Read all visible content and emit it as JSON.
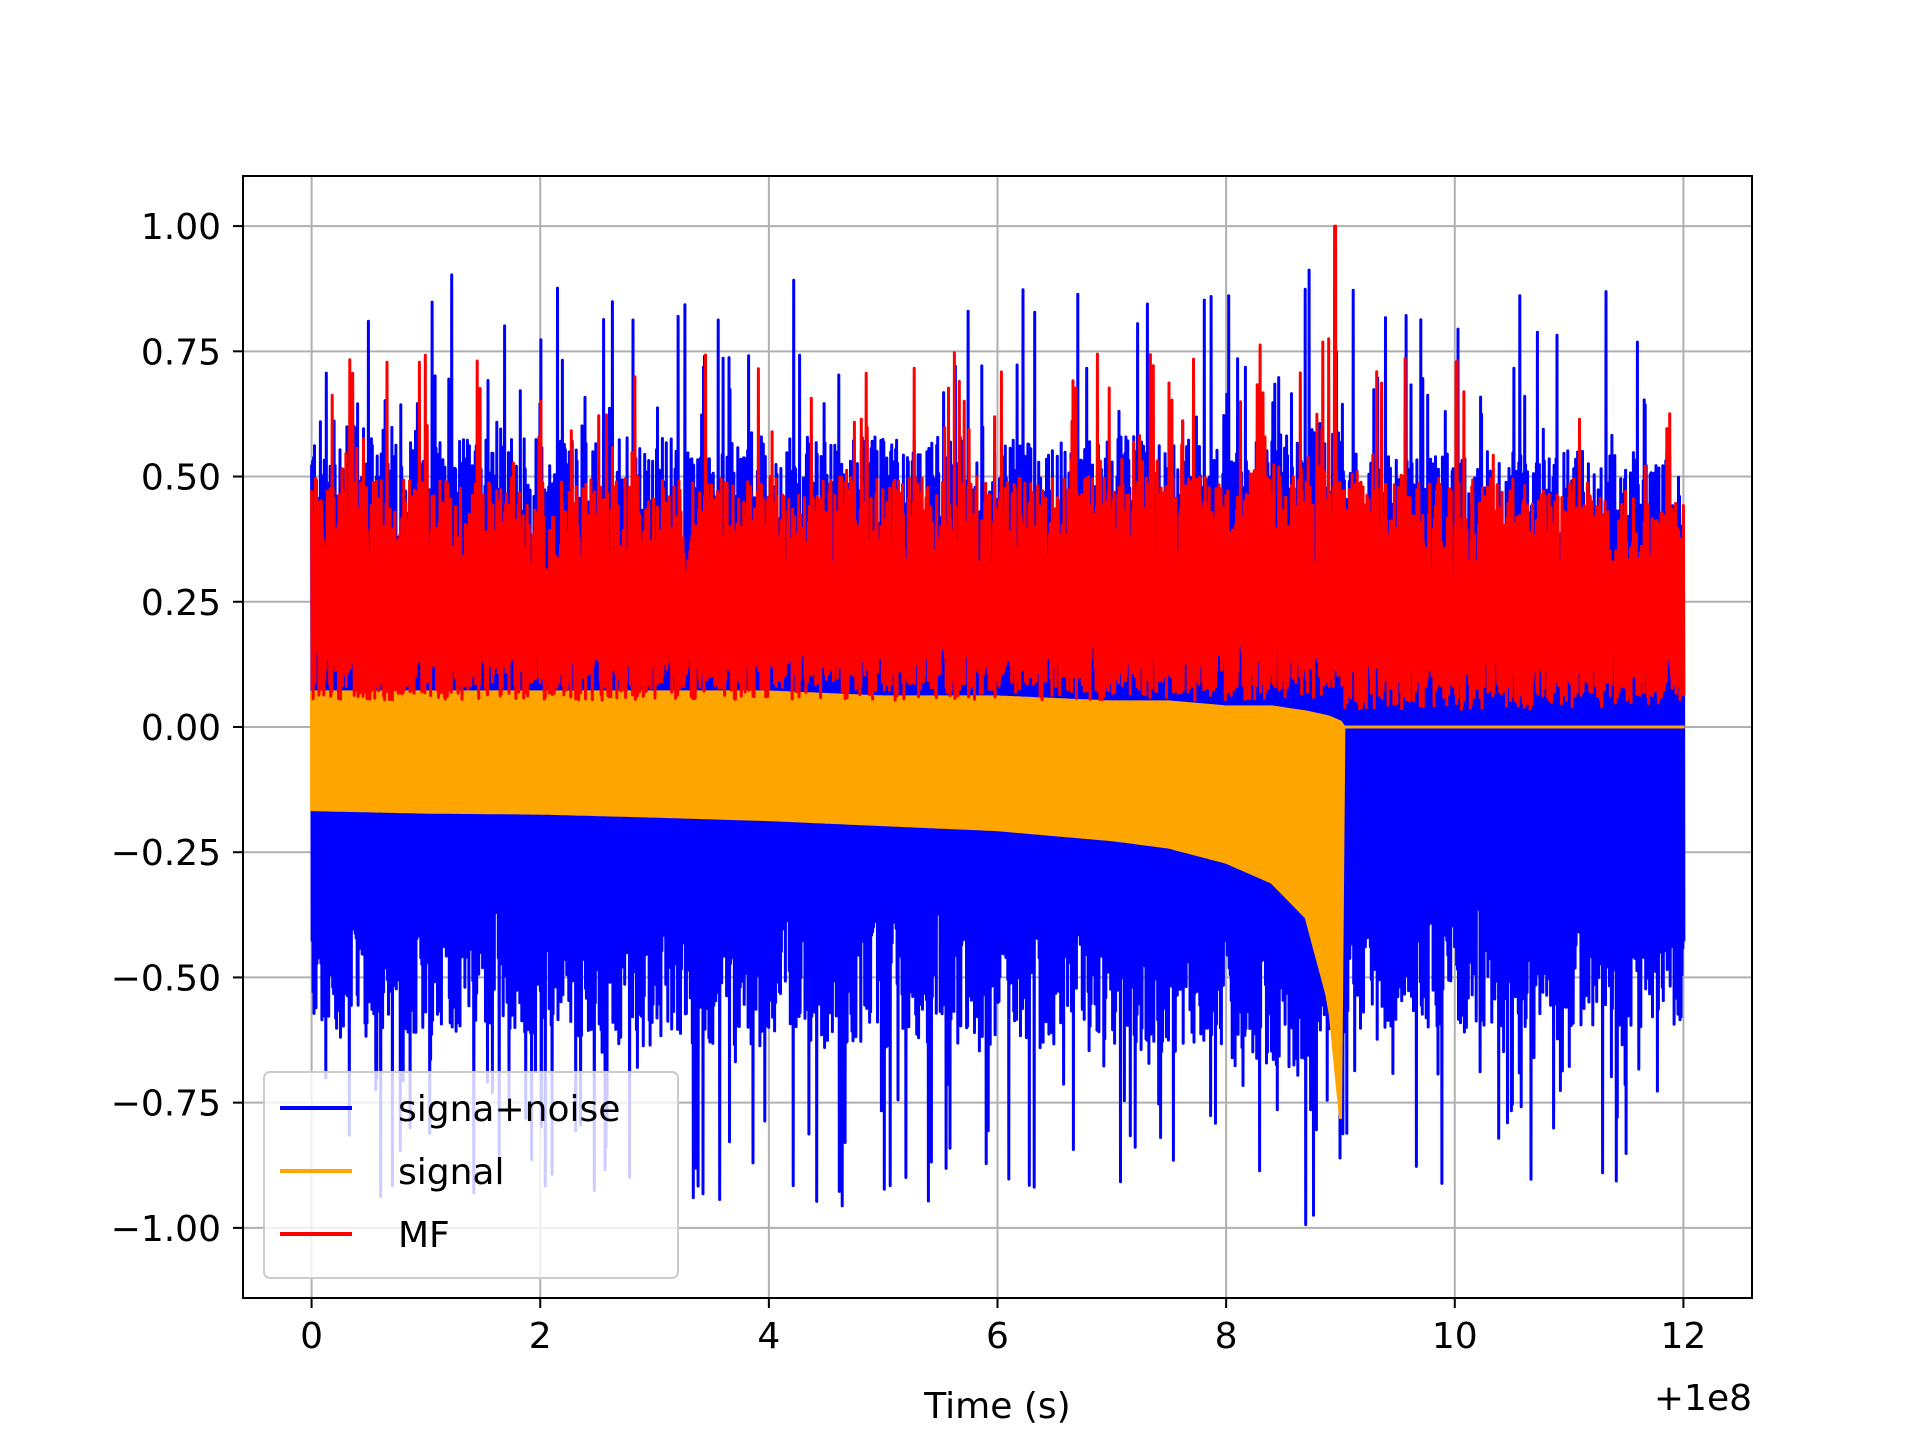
{
  "chart_data": {
    "type": "line",
    "title": "",
    "xlabel": "Time (s)",
    "ylabel": "",
    "x_offset_label": "+1e8",
    "xlim": [
      -0.6,
      12.6
    ],
    "ylim": [
      -1.14,
      1.1
    ],
    "xticks": [
      0,
      2,
      4,
      6,
      8,
      10,
      12
    ],
    "xtick_labels": [
      "0",
      "2",
      "4",
      "6",
      "8",
      "10",
      "12"
    ],
    "yticks": [
      1.0,
      0.75,
      0.5,
      0.25,
      0.0,
      -0.25,
      -0.5,
      -0.75,
      -1.0
    ],
    "ytick_labels": [
      "1.00",
      "0.75",
      "0.50",
      "0.25",
      "0.00",
      "−0.25",
      "−0.50",
      "−0.75",
      "−1.00"
    ],
    "grid": true,
    "legend_position": "lower-left",
    "series": [
      {
        "name": "signa+noise",
        "color": "#0000ff",
        "x_range": [
          0,
          12
        ],
        "envelope": {
          "x": [
            0,
            0.5,
            1,
            2,
            3,
            4,
            5,
            6,
            7,
            8,
            8.7,
            9.0,
            9.3,
            10,
            11,
            12
          ],
          "upper_typical": [
            0.62,
            0.6,
            0.6,
            0.58,
            0.58,
            0.58,
            0.58,
            0.58,
            0.58,
            0.58,
            0.6,
            0.6,
            0.55,
            0.55,
            0.55,
            0.55
          ],
          "lower_typical": [
            -0.62,
            -0.62,
            -0.62,
            -0.62,
            -0.64,
            -0.64,
            -0.64,
            -0.64,
            -0.65,
            -0.66,
            -0.7,
            -0.62,
            -0.6,
            -0.6,
            -0.6,
            -0.6
          ],
          "upper_spikes_max": 1.0,
          "lower_spikes_min": -1.04
        }
      },
      {
        "name": "signal",
        "color": "#ffa500",
        "x_range": [
          0,
          12
        ],
        "envelope": {
          "x": [
            0,
            1,
            2,
            3,
            4,
            5,
            6,
            7,
            7.5,
            8,
            8.4,
            8.7,
            8.9,
            9.0,
            9.02,
            12
          ],
          "upper": [
            0.07,
            0.07,
            0.07,
            0.07,
            0.07,
            0.06,
            0.06,
            0.05,
            0.05,
            0.04,
            0.04,
            0.03,
            0.02,
            0.01,
            0.0,
            0.0
          ],
          "lower": [
            -0.165,
            -0.17,
            -0.172,
            -0.178,
            -0.185,
            -0.195,
            -0.205,
            -0.225,
            -0.24,
            -0.27,
            -0.31,
            -0.38,
            -0.55,
            -0.78,
            0.0,
            0.0
          ]
        }
      },
      {
        "name": "MF",
        "color": "#ff0000",
        "x_range": [
          0,
          12
        ],
        "envelope": {
          "x": [
            0,
            1,
            2,
            3,
            4,
            5,
            6,
            7,
            8,
            8.9,
            9.0,
            10,
            11,
            12
          ],
          "upper_typical": [
            0.5,
            0.5,
            0.5,
            0.5,
            0.5,
            0.5,
            0.5,
            0.5,
            0.5,
            0.55,
            0.52,
            0.5,
            0.5,
            0.45
          ],
          "lower_typical": [
            0.03,
            0.03,
            0.03,
            0.03,
            0.03,
            0.03,
            0.03,
            0.03,
            0.03,
            0.03,
            0.01,
            0.01,
            0.01,
            0.03
          ],
          "peak": {
            "x": 8.95,
            "y": 1.0
          }
        }
      }
    ]
  }
}
